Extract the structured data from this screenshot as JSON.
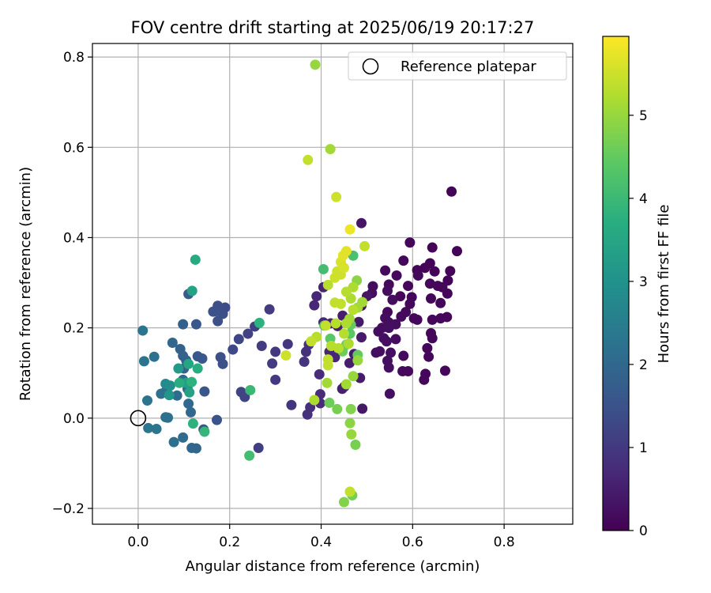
{
  "chart_data": {
    "type": "scatter",
    "title": "FOV centre drift starting at 2025/06/19 20:17:27",
    "xlabel": "Angular distance from reference (arcmin)",
    "ylabel": "Rotation from reference (arcmin)",
    "xlim": [
      -0.1,
      0.95
    ],
    "ylim": [
      -0.235,
      0.83
    ],
    "xticks": [
      0.0,
      0.2,
      0.4,
      0.6,
      0.8
    ],
    "xtick_labels": [
      "0.0",
      "0.2",
      "0.4",
      "0.6",
      "0.8"
    ],
    "yticks": [
      -0.2,
      0.0,
      0.2,
      0.4,
      0.6,
      0.8
    ],
    "ytick_labels": [
      "−0.2",
      "0.0",
      "0.2",
      "0.4",
      "0.6",
      "0.8"
    ],
    "grid": true,
    "legend": {
      "placement": "top-right",
      "entries": [
        "Reference platepar"
      ]
    },
    "reference_point": {
      "x": 0.0,
      "y": 0.0,
      "marker": "open-circle"
    },
    "colorbar": {
      "label": "Hours from first FF file",
      "range": [
        0,
        5.95
      ],
      "ticks": [
        0,
        1,
        2,
        3,
        4,
        5
      ],
      "tick_labels": [
        "0",
        "1",
        "2",
        "3",
        "4",
        "5"
      ],
      "colormap": "viridis"
    },
    "points": [
      {
        "x": 0.685,
        "y": 0.502,
        "h": 0.05
      },
      {
        "x": 0.697,
        "y": 0.37,
        "h": 0.05
      },
      {
        "x": 0.643,
        "y": 0.378,
        "h": 0.05
      },
      {
        "x": 0.594,
        "y": 0.389,
        "h": 0.1
      },
      {
        "x": 0.58,
        "y": 0.349,
        "h": 0.1
      },
      {
        "x": 0.61,
        "y": 0.328,
        "h": 0.05
      },
      {
        "x": 0.627,
        "y": 0.333,
        "h": 0.05
      },
      {
        "x": 0.638,
        "y": 0.343,
        "h": 0.05
      },
      {
        "x": 0.648,
        "y": 0.325,
        "h": 0.05
      },
      {
        "x": 0.682,
        "y": 0.326,
        "h": 0.05
      },
      {
        "x": 0.677,
        "y": 0.305,
        "h": 0.05
      },
      {
        "x": 0.665,
        "y": 0.29,
        "h": 0.1
      },
      {
        "x": 0.638,
        "y": 0.298,
        "h": 0.1
      },
      {
        "x": 0.655,
        "y": 0.293,
        "h": 0.1
      },
      {
        "x": 0.612,
        "y": 0.316,
        "h": 0.1
      },
      {
        "x": 0.59,
        "y": 0.293,
        "h": 0.1
      },
      {
        "x": 0.573,
        "y": 0.27,
        "h": 0.1
      },
      {
        "x": 0.598,
        "y": 0.268,
        "h": 0.1
      },
      {
        "x": 0.676,
        "y": 0.276,
        "h": 0.1
      },
      {
        "x": 0.64,
        "y": 0.265,
        "h": 0.1
      },
      {
        "x": 0.661,
        "y": 0.255,
        "h": 0.1
      },
      {
        "x": 0.594,
        "y": 0.253,
        "h": 0.1
      },
      {
        "x": 0.565,
        "y": 0.316,
        "h": 0.15
      },
      {
        "x": 0.54,
        "y": 0.327,
        "h": 0.15
      },
      {
        "x": 0.548,
        "y": 0.296,
        "h": 0.15
      },
      {
        "x": 0.545,
        "y": 0.282,
        "h": 0.2
      },
      {
        "x": 0.513,
        "y": 0.292,
        "h": 0.2
      },
      {
        "x": 0.511,
        "y": 0.277,
        "h": 0.2
      },
      {
        "x": 0.556,
        "y": 0.262,
        "h": 0.2
      },
      {
        "x": 0.585,
        "y": 0.235,
        "h": 0.15
      },
      {
        "x": 0.575,
        "y": 0.225,
        "h": 0.15
      },
      {
        "x": 0.603,
        "y": 0.221,
        "h": 0.1
      },
      {
        "x": 0.61,
        "y": 0.218,
        "h": 0.1
      },
      {
        "x": 0.643,
        "y": 0.218,
        "h": 0.1
      },
      {
        "x": 0.661,
        "y": 0.221,
        "h": 0.1
      },
      {
        "x": 0.675,
        "y": 0.224,
        "h": 0.1
      },
      {
        "x": 0.545,
        "y": 0.235,
        "h": 0.15
      },
      {
        "x": 0.54,
        "y": 0.222,
        "h": 0.2
      },
      {
        "x": 0.548,
        "y": 0.212,
        "h": 0.2
      },
      {
        "x": 0.533,
        "y": 0.2,
        "h": 0.2
      },
      {
        "x": 0.548,
        "y": 0.2,
        "h": 0.25
      },
      {
        "x": 0.563,
        "y": 0.208,
        "h": 0.2
      },
      {
        "x": 0.525,
        "y": 0.192,
        "h": 0.2
      },
      {
        "x": 0.537,
        "y": 0.177,
        "h": 0.25
      },
      {
        "x": 0.543,
        "y": 0.17,
        "h": 0.25
      },
      {
        "x": 0.563,
        "y": 0.175,
        "h": 0.2
      },
      {
        "x": 0.64,
        "y": 0.188,
        "h": 0.1
      },
      {
        "x": 0.643,
        "y": 0.177,
        "h": 0.1
      },
      {
        "x": 0.632,
        "y": 0.155,
        "h": 0.1
      },
      {
        "x": 0.635,
        "y": 0.136,
        "h": 0.1
      },
      {
        "x": 0.58,
        "y": 0.138,
        "h": 0.15
      },
      {
        "x": 0.52,
        "y": 0.145,
        "h": 0.25
      },
      {
        "x": 0.528,
        "y": 0.148,
        "h": 0.25
      },
      {
        "x": 0.552,
        "y": 0.145,
        "h": 0.25
      },
      {
        "x": 0.545,
        "y": 0.127,
        "h": 0.25
      },
      {
        "x": 0.578,
        "y": 0.104,
        "h": 0.15
      },
      {
        "x": 0.59,
        "y": 0.104,
        "h": 0.15
      },
      {
        "x": 0.628,
        "y": 0.098,
        "h": 0.1
      },
      {
        "x": 0.625,
        "y": 0.085,
        "h": 0.1
      },
      {
        "x": 0.671,
        "y": 0.105,
        "h": 0.1
      },
      {
        "x": 0.548,
        "y": 0.112,
        "h": 0.25
      },
      {
        "x": 0.55,
        "y": 0.054,
        "h": 0.25
      },
      {
        "x": 0.488,
        "y": 0.432,
        "h": 0.35
      },
      {
        "x": 0.5,
        "y": 0.27,
        "h": 0.35
      },
      {
        "x": 0.488,
        "y": 0.249,
        "h": 0.4
      },
      {
        "x": 0.482,
        "y": 0.213,
        "h": 0.4
      },
      {
        "x": 0.488,
        "y": 0.179,
        "h": 0.45
      },
      {
        "x": 0.447,
        "y": 0.227,
        "h": 0.5
      },
      {
        "x": 0.436,
        "y": 0.204,
        "h": 0.55
      },
      {
        "x": 0.421,
        "y": 0.21,
        "h": 0.6
      },
      {
        "x": 0.405,
        "y": 0.29,
        "h": 0.6
      },
      {
        "x": 0.39,
        "y": 0.27,
        "h": 0.65
      },
      {
        "x": 0.385,
        "y": 0.25,
        "h": 0.7
      },
      {
        "x": 0.405,
        "y": 0.212,
        "h": 0.7
      },
      {
        "x": 0.367,
        "y": 0.147,
        "h": 0.85
      },
      {
        "x": 0.363,
        "y": 0.125,
        "h": 0.9
      },
      {
        "x": 0.373,
        "y": 0.163,
        "h": 0.85
      },
      {
        "x": 0.396,
        "y": 0.097,
        "h": 0.75
      },
      {
        "x": 0.418,
        "y": 0.147,
        "h": 0.65
      },
      {
        "x": 0.43,
        "y": 0.135,
        "h": 0.65
      },
      {
        "x": 0.446,
        "y": 0.065,
        "h": 0.55
      },
      {
        "x": 0.451,
        "y": 0.07,
        "h": 0.55
      },
      {
        "x": 0.398,
        "y": 0.053,
        "h": 0.75
      },
      {
        "x": 0.398,
        "y": 0.033,
        "h": 0.75
      },
      {
        "x": 0.37,
        "y": 0.008,
        "h": 0.85
      },
      {
        "x": 0.376,
        "y": 0.024,
        "h": 0.8
      },
      {
        "x": 0.462,
        "y": 0.122,
        "h": 0.5
      },
      {
        "x": 0.472,
        "y": 0.142,
        "h": 0.45
      },
      {
        "x": 0.478,
        "y": 0.13,
        "h": 0.45
      },
      {
        "x": 0.485,
        "y": 0.089,
        "h": 0.45
      },
      {
        "x": 0.49,
        "y": 0.021,
        "h": 0.4
      },
      {
        "x": 0.3,
        "y": 0.085,
        "h": 1.0
      },
      {
        "x": 0.335,
        "y": 0.029,
        "h": 0.9
      },
      {
        "x": 0.27,
        "y": 0.16,
        "h": 1.05
      },
      {
        "x": 0.287,
        "y": 0.241,
        "h": 1.05
      },
      {
        "x": 0.255,
        "y": 0.203,
        "h": 1.1
      },
      {
        "x": 0.293,
        "y": 0.121,
        "h": 1.05
      },
      {
        "x": 0.3,
        "y": 0.147,
        "h": 1.0
      },
      {
        "x": 0.327,
        "y": 0.164,
        "h": 0.95
      },
      {
        "x": 0.24,
        "y": 0.187,
        "h": 1.15
      },
      {
        "x": 0.22,
        "y": 0.175,
        "h": 1.25
      },
      {
        "x": 0.207,
        "y": 0.152,
        "h": 1.3
      },
      {
        "x": 0.233,
        "y": 0.047,
        "h": 1.2
      },
      {
        "x": 0.225,
        "y": 0.058,
        "h": 1.2
      },
      {
        "x": 0.263,
        "y": -0.066,
        "h": 1.1
      },
      {
        "x": 0.19,
        "y": 0.245,
        "h": 1.35
      },
      {
        "x": 0.174,
        "y": 0.249,
        "h": 1.4
      },
      {
        "x": 0.17,
        "y": 0.237,
        "h": 1.45
      },
      {
        "x": 0.164,
        "y": 0.236,
        "h": 1.45
      },
      {
        "x": 0.174,
        "y": 0.215,
        "h": 1.45
      },
      {
        "x": 0.185,
        "y": 0.231,
        "h": 1.4
      },
      {
        "x": 0.18,
        "y": 0.135,
        "h": 1.45
      },
      {
        "x": 0.185,
        "y": 0.12,
        "h": 1.45
      },
      {
        "x": 0.127,
        "y": 0.208,
        "h": 1.6
      },
      {
        "x": 0.13,
        "y": 0.137,
        "h": 1.6
      },
      {
        "x": 0.14,
        "y": 0.132,
        "h": 1.6
      },
      {
        "x": 0.145,
        "y": 0.059,
        "h": 1.6
      },
      {
        "x": 0.143,
        "y": -0.025,
        "h": 1.55
      },
      {
        "x": 0.172,
        "y": -0.004,
        "h": 1.5
      },
      {
        "x": 0.11,
        "y": 0.275,
        "h": 1.75
      },
      {
        "x": 0.098,
        "y": 0.208,
        "h": 1.8
      },
      {
        "x": 0.092,
        "y": 0.153,
        "h": 1.85
      },
      {
        "x": 0.098,
        "y": 0.138,
        "h": 1.85
      },
      {
        "x": 0.105,
        "y": 0.128,
        "h": 1.85
      },
      {
        "x": 0.1,
        "y": 0.11,
        "h": 1.85
      },
      {
        "x": 0.075,
        "y": 0.167,
        "h": 1.95
      },
      {
        "x": 0.01,
        "y": 0.194,
        "h": 2.25
      },
      {
        "x": 0.013,
        "y": 0.126,
        "h": 2.25
      },
      {
        "x": 0.035,
        "y": 0.136,
        "h": 2.2
      },
      {
        "x": 0.02,
        "y": 0.039,
        "h": 2.25
      },
      {
        "x": 0.022,
        "y": -0.022,
        "h": 2.3
      },
      {
        "x": 0.04,
        "y": -0.024,
        "h": 2.3
      },
      {
        "x": 0.05,
        "y": 0.054,
        "h": 2.2
      },
      {
        "x": 0.06,
        "y": 0.059,
        "h": 2.15
      },
      {
        "x": 0.06,
        "y": 0.002,
        "h": 2.2
      },
      {
        "x": 0.065,
        "y": 0.001,
        "h": 2.2
      },
      {
        "x": 0.078,
        "y": -0.053,
        "h": 2.15
      },
      {
        "x": 0.098,
        "y": -0.043,
        "h": 2.1
      },
      {
        "x": 0.085,
        "y": 0.05,
        "h": 2.05
      },
      {
        "x": 0.098,
        "y": 0.085,
        "h": 2.0
      },
      {
        "x": 0.108,
        "y": 0.065,
        "h": 2.0
      },
      {
        "x": 0.11,
        "y": 0.032,
        "h": 2.0
      },
      {
        "x": 0.115,
        "y": 0.013,
        "h": 2.0
      },
      {
        "x": 0.117,
        "y": -0.066,
        "h": 1.95
      },
      {
        "x": 0.127,
        "y": -0.067,
        "h": 1.95
      },
      {
        "x": 0.06,
        "y": 0.076,
        "h": 2.8
      },
      {
        "x": 0.07,
        "y": 0.072,
        "h": 2.9
      },
      {
        "x": 0.068,
        "y": 0.051,
        "h": 3.1
      },
      {
        "x": 0.088,
        "y": 0.11,
        "h": 3.2
      },
      {
        "x": 0.105,
        "y": 0.078,
        "h": 3.3
      },
      {
        "x": 0.112,
        "y": 0.057,
        "h": 3.4
      },
      {
        "x": 0.11,
        "y": 0.12,
        "h": 3.5
      },
      {
        "x": 0.118,
        "y": 0.282,
        "h": 3.4
      },
      {
        "x": 0.125,
        "y": 0.351,
        "h": 3.6
      },
      {
        "x": 0.13,
        "y": 0.11,
        "h": 3.7
      },
      {
        "x": 0.117,
        "y": 0.08,
        "h": 3.8
      },
      {
        "x": 0.12,
        "y": -0.012,
        "h": 3.8
      },
      {
        "x": 0.145,
        "y": -0.03,
        "h": 3.9
      },
      {
        "x": 0.265,
        "y": 0.211,
        "h": 3.8
      },
      {
        "x": 0.245,
        "y": 0.062,
        "h": 4.0
      },
      {
        "x": 0.243,
        "y": -0.083,
        "h": 4.1
      },
      {
        "x": 0.09,
        "y": 0.078,
        "h": 3.7
      },
      {
        "x": 0.405,
        "y": 0.33,
        "h": 4.1
      },
      {
        "x": 0.47,
        "y": 0.36,
        "h": 4.2
      },
      {
        "x": 0.407,
        "y": 0.205,
        "h": 4.3
      },
      {
        "x": 0.42,
        "y": 0.176,
        "h": 4.4
      },
      {
        "x": 0.463,
        "y": 0.187,
        "h": 4.4
      },
      {
        "x": 0.465,
        "y": 0.207,
        "h": 4.5
      },
      {
        "x": 0.48,
        "y": 0.14,
        "h": 4.5
      },
      {
        "x": 0.455,
        "y": 0.163,
        "h": 4.6
      },
      {
        "x": 0.447,
        "y": 0.148,
        "h": 4.6
      },
      {
        "x": 0.418,
        "y": 0.034,
        "h": 4.6
      },
      {
        "x": 0.435,
        "y": 0.02,
        "h": 4.7
      },
      {
        "x": 0.465,
        "y": 0.02,
        "h": 4.8
      },
      {
        "x": 0.475,
        "y": -0.059,
        "h": 4.7
      },
      {
        "x": 0.468,
        "y": -0.171,
        "h": 4.7
      },
      {
        "x": 0.45,
        "y": -0.186,
        "h": 4.8
      },
      {
        "x": 0.463,
        "y": -0.011,
        "h": 4.9
      },
      {
        "x": 0.466,
        "y": -0.036,
        "h": 5.0
      },
      {
        "x": 0.48,
        "y": 0.128,
        "h": 5.0
      },
      {
        "x": 0.47,
        "y": 0.093,
        "h": 5.0
      },
      {
        "x": 0.455,
        "y": 0.075,
        "h": 5.1
      },
      {
        "x": 0.413,
        "y": 0.078,
        "h": 5.1
      },
      {
        "x": 0.385,
        "y": 0.04,
        "h": 5.2
      },
      {
        "x": 0.387,
        "y": 0.783,
        "h": 5.0
      },
      {
        "x": 0.42,
        "y": 0.596,
        "h": 5.1
      },
      {
        "x": 0.371,
        "y": 0.572,
        "h": 5.4
      },
      {
        "x": 0.433,
        "y": 0.49,
        "h": 5.5
      },
      {
        "x": 0.463,
        "y": 0.418,
        "h": 5.8
      },
      {
        "x": 0.495,
        "y": 0.381,
        "h": 5.4
      },
      {
        "x": 0.455,
        "y": 0.37,
        "h": 5.7
      },
      {
        "x": 0.448,
        "y": 0.36,
        "h": 5.7
      },
      {
        "x": 0.443,
        "y": 0.346,
        "h": 5.6
      },
      {
        "x": 0.45,
        "y": 0.333,
        "h": 5.6
      },
      {
        "x": 0.435,
        "y": 0.325,
        "h": 5.5
      },
      {
        "x": 0.443,
        "y": 0.318,
        "h": 5.5
      },
      {
        "x": 0.43,
        "y": 0.311,
        "h": 5.5
      },
      {
        "x": 0.415,
        "y": 0.295,
        "h": 5.3
      },
      {
        "x": 0.455,
        "y": 0.28,
        "h": 5.3
      },
      {
        "x": 0.47,
        "y": 0.29,
        "h": 5.2
      },
      {
        "x": 0.478,
        "y": 0.305,
        "h": 4.9
      },
      {
        "x": 0.465,
        "y": 0.265,
        "h": 5.2
      },
      {
        "x": 0.48,
        "y": 0.245,
        "h": 5.1
      },
      {
        "x": 0.49,
        "y": 0.257,
        "h": 5.1
      },
      {
        "x": 0.43,
        "y": 0.256,
        "h": 5.4
      },
      {
        "x": 0.443,
        "y": 0.253,
        "h": 5.4
      },
      {
        "x": 0.47,
        "y": 0.24,
        "h": 5.3
      },
      {
        "x": 0.455,
        "y": 0.21,
        "h": 5.2
      },
      {
        "x": 0.462,
        "y": 0.22,
        "h": 5.1
      },
      {
        "x": 0.432,
        "y": 0.21,
        "h": 5.3
      },
      {
        "x": 0.41,
        "y": 0.205,
        "h": 5.4
      },
      {
        "x": 0.45,
        "y": 0.187,
        "h": 5.3
      },
      {
        "x": 0.46,
        "y": 0.165,
        "h": 5.2
      },
      {
        "x": 0.422,
        "y": 0.16,
        "h": 5.3
      },
      {
        "x": 0.438,
        "y": 0.155,
        "h": 5.3
      },
      {
        "x": 0.378,
        "y": 0.17,
        "h": 5.4
      },
      {
        "x": 0.39,
        "y": 0.18,
        "h": 5.3
      },
      {
        "x": 0.415,
        "y": 0.13,
        "h": 5.4
      },
      {
        "x": 0.415,
        "y": 0.117,
        "h": 5.4
      },
      {
        "x": 0.323,
        "y": 0.139,
        "h": 5.5
      },
      {
        "x": 0.463,
        "y": -0.163,
        "h": 5.4
      }
    ]
  }
}
